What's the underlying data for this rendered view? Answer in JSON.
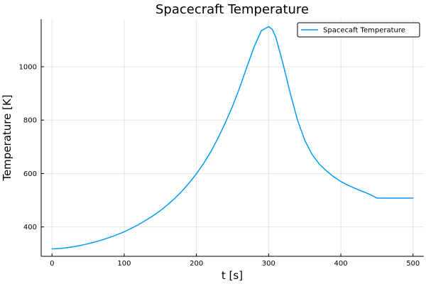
{
  "chart_data": {
    "type": "line",
    "title": "Spacecraft Temperature",
    "xlabel": "t [s]",
    "ylabel": "Temperature [K]",
    "xlim": [
      -15,
      515
    ],
    "ylim": [
      290,
      1178
    ],
    "xticks": [
      0,
      100,
      200,
      300,
      400,
      500
    ],
    "yticks": [
      400,
      600,
      800,
      1000
    ],
    "grid": true,
    "legend_position": "top-right",
    "series": [
      {
        "name": "Spacecaft Temperature",
        "color": "#009af9",
        "x": [
          0,
          10,
          20,
          30,
          40,
          50,
          60,
          70,
          80,
          90,
          100,
          110,
          120,
          130,
          140,
          150,
          160,
          170,
          180,
          190,
          200,
          210,
          220,
          230,
          240,
          250,
          260,
          270,
          280,
          290,
          300,
          305,
          310,
          320,
          330,
          340,
          350,
          360,
          370,
          380,
          390,
          400,
          410,
          420,
          430,
          440,
          450,
          460,
          470,
          480,
          490,
          500
        ],
        "y": [
          318,
          319,
          322,
          326,
          331,
          337,
          344,
          352,
          361,
          371,
          382,
          395,
          409,
          425,
          442,
          461,
          483,
          507,
          534,
          565,
          599,
          638,
          682,
          733,
          790,
          852,
          922,
          1000,
          1075,
          1135,
          1150,
          1140,
          1110,
          1010,
          900,
          800,
          725,
          672,
          636,
          610,
          588,
          570,
          556,
          544,
          533,
          522,
          508,
          508,
          508,
          508,
          508,
          508
        ]
      }
    ]
  }
}
